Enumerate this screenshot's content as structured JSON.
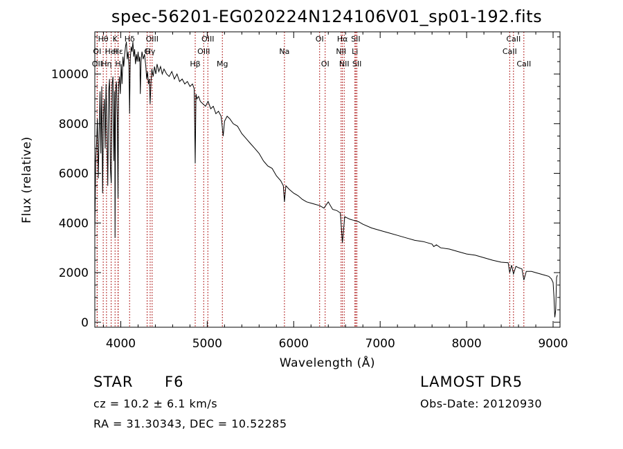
{
  "chart_data": {
    "type": "line",
    "title": "spec-56201-EG020224N124106V01_sp01-192.fits",
    "xlabel": "Wavelength (Å)",
    "ylabel": "Flux (relative)",
    "xlim": [
      3700,
      9080
    ],
    "ylim": [
      -200,
      11700
    ],
    "xticks": [
      4000,
      5000,
      6000,
      7000,
      8000,
      9000
    ],
    "yticks": [
      0,
      2000,
      4000,
      6000,
      8000,
      10000
    ],
    "grid": false,
    "legend": "none",
    "line_color": "#000000",
    "marker_color": "#b22222",
    "series": [
      {
        "x": [
          3700,
          3710,
          3720,
          3730,
          3740,
          3750,
          3760,
          3770,
          3780,
          3790,
          3800,
          3810,
          3820,
          3830,
          3840,
          3850,
          3860,
          3870,
          3880,
          3890,
          3900,
          3910,
          3920,
          3930,
          3934,
          3940,
          3950,
          3960,
          3968,
          3975,
          3985,
          3995,
          4005,
          4015,
          4025,
          4035,
          4045,
          4055,
          4065,
          4075,
          4085,
          4095,
          4102,
          4110,
          4120,
          4130,
          4140,
          4150,
          4160,
          4170,
          4180,
          4190,
          4200,
          4210,
          4220,
          4226,
          4235,
          4245,
          4260,
          4275,
          4290,
          4300,
          4310,
          4320,
          4330,
          4340,
          4350,
          4360,
          4375,
          4390,
          4405,
          4420,
          4440,
          4460,
          4480,
          4500,
          4530,
          4560,
          4590,
          4620,
          4650,
          4680,
          4710,
          4740,
          4770,
          4800,
          4830,
          4850,
          4861,
          4870,
          4880,
          4900,
          4920,
          4950,
          4980,
          5010,
          5040,
          5070,
          5100,
          5130,
          5160,
          5170,
          5184,
          5200,
          5230,
          5260,
          5300,
          5350,
          5400,
          5450,
          5500,
          5550,
          5600,
          5650,
          5700,
          5750,
          5800,
          5850,
          5880,
          5893,
          5910,
          5950,
          6000,
          6050,
          6100,
          6150,
          6200,
          6250,
          6300,
          6350,
          6400,
          6450,
          6500,
          6540,
          6563,
          6590,
          6650,
          6700,
          6750,
          6800,
          6900,
          7000,
          7100,
          7200,
          7300,
          7400,
          7500,
          7600,
          7620,
          7650,
          7700,
          7800,
          7900,
          8000,
          8100,
          8200,
          8300,
          8400,
          8480,
          8498,
          8520,
          8542,
          8570,
          8600,
          8640,
          8662,
          8690,
          8750,
          8800,
          8850,
          8900,
          8950,
          8980,
          9000,
          9010,
          9020,
          9030,
          9040,
          9050
        ],
        "y": [
          3500,
          6500,
          7200,
          8200,
          5800,
          7500,
          9300,
          6800,
          9500,
          5200,
          8300,
          9000,
          7000,
          9600,
          7800,
          5500,
          9300,
          9800,
          6200,
          5600,
          9600,
          9900,
          6500,
          9300,
          3400,
          9400,
          9700,
          8200,
          5000,
          9500,
          9900,
          9200,
          10400,
          9600,
          10700,
          10300,
          10800,
          11100,
          11300,
          10600,
          10900,
          10300,
          8400,
          10600,
          11100,
          10900,
          11300,
          10700,
          11000,
          10400,
          10800,
          10500,
          10900,
          10500,
          10700,
          9200,
          10500,
          10900,
          10600,
          10800,
          10300,
          9800,
          10100,
          9600,
          9800,
          8800,
          9700,
          10200,
          9900,
          10300,
          10000,
          10400,
          10100,
          10300,
          10000,
          10200,
          10000,
          9900,
          10100,
          9800,
          10000,
          9700,
          9800,
          9600,
          9700,
          9500,
          9600,
          9400,
          6400,
          9200,
          9000,
          9100,
          8900,
          8800,
          8700,
          8900,
          8600,
          8700,
          8400,
          8500,
          8300,
          8000,
          7500,
          8100,
          8300,
          8200,
          8000,
          7900,
          7600,
          7400,
          7200,
          7000,
          6800,
          6500,
          6300,
          6200,
          5900,
          5700,
          5500,
          4850,
          5500,
          5350,
          5200,
          5100,
          4950,
          4850,
          4800,
          4750,
          4700,
          4600,
          4850,
          4550,
          4500,
          4400,
          3200,
          4250,
          4150,
          4100,
          4050,
          3950,
          3800,
          3700,
          3600,
          3500,
          3400,
          3300,
          3250,
          3150,
          3050,
          3120,
          3000,
          2950,
          2850,
          2750,
          2700,
          2600,
          2500,
          2420,
          2400,
          2000,
          2300,
          1950,
          2250,
          2200,
          2150,
          1700,
          2050,
          2050,
          2000,
          1950,
          1900,
          1850,
          1750,
          1600,
          1000,
          200,
          500,
          1800,
          1900
        ]
      }
    ],
    "lines": [
      {
        "label": "Hθ",
        "x": 3797,
        "row": 1
      },
      {
        "label": "OII",
        "x": 3727,
        "row": 3
      },
      {
        "label": "OI",
        "x": 3727,
        "row": 2
      },
      {
        "label": "Hη",
        "x": 3835,
        "row": 3
      },
      {
        "label": "HeI",
        "x": 3889,
        "row": 2
      },
      {
        "label": "K",
        "x": 3934,
        "row": 1
      },
      {
        "label": "H",
        "x": 3968,
        "row": 3
      },
      {
        "label": "Hε",
        "x": 3970,
        "row": 2
      },
      {
        "label": "Hδ",
        "x": 4102,
        "row": 1
      },
      {
        "label": "G",
        "x": 4305,
        "row": 2
      },
      {
        "label": "OIII",
        "x": 4363,
        "row": 1
      },
      {
        "label": "Hγ",
        "x": 4340,
        "row": 2
      },
      {
        "label": "Hβ",
        "x": 4861,
        "row": 3
      },
      {
        "label": "OIII",
        "x": 4959,
        "row": 2
      },
      {
        "label": "OIII",
        "x": 5007,
        "row": 1
      },
      {
        "label": "Mg",
        "x": 5175,
        "row": 3
      },
      {
        "label": "Na",
        "x": 5893,
        "row": 2
      },
      {
        "label": "OI",
        "x": 6300,
        "row": 1
      },
      {
        "label": "OI",
        "x": 6364,
        "row": 3
      },
      {
        "label": "NII",
        "x": 6548,
        "row": 2
      },
      {
        "label": "NII",
        "x": 6584,
        "row": 3
      },
      {
        "label": "Hα",
        "x": 6563,
        "row": 1
      },
      {
        "label": "Li",
        "x": 6708,
        "row": 2
      },
      {
        "label": "SII",
        "x": 6717,
        "row": 1
      },
      {
        "label": "SII",
        "x": 6731,
        "row": 3
      },
      {
        "label": "CaII",
        "x": 8498,
        "row": 2
      },
      {
        "label": "CaII",
        "x": 8542,
        "row": 1
      },
      {
        "label": "CaII",
        "x": 8662,
        "row": 3
      }
    ]
  },
  "info": {
    "class_label": "STAR",
    "subclass": "F6",
    "survey": "LAMOST DR5",
    "cz": "cz = 10.2 ± 6.1 km/s",
    "obs_date": "Obs-Date: 20120930",
    "coords": "RA =  31.30343, DEC =  10.52285"
  }
}
